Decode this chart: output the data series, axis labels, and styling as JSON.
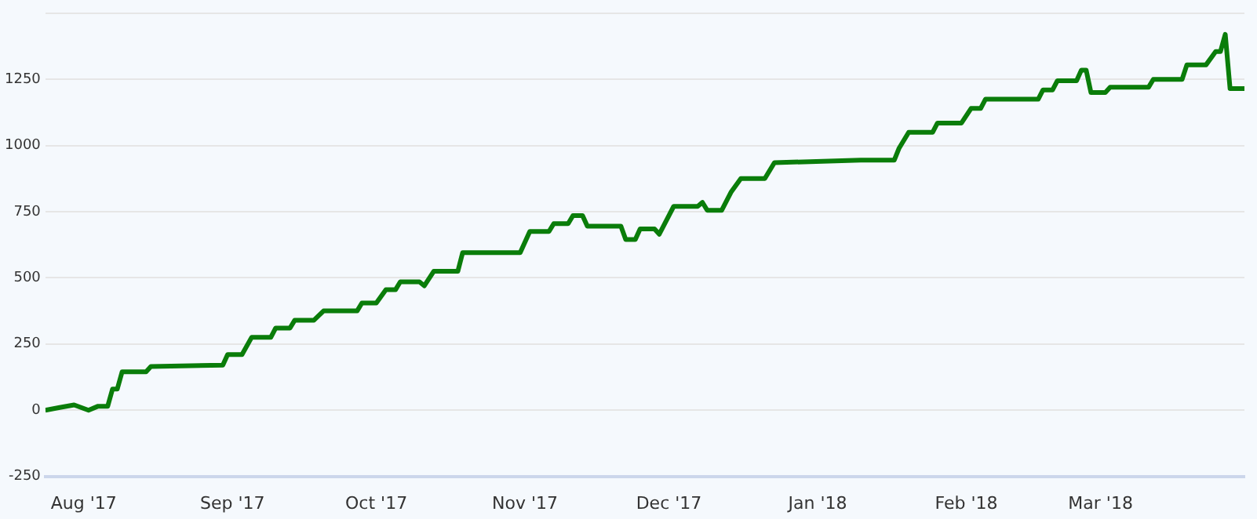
{
  "chart_data": {
    "type": "line",
    "marker": "none",
    "line_style": "solid",
    "grid": "y",
    "legend": false,
    "xlim": [
      "2017-07-24",
      "2018-03-31"
    ],
    "xticks": [
      {
        "value": "2017-08-01",
        "label": "Aug '17"
      },
      {
        "value": "2017-09-01",
        "label": "Sep '17"
      },
      {
        "value": "2017-10-01",
        "label": "Oct '17"
      },
      {
        "value": "2017-11-01",
        "label": "Nov '17"
      },
      {
        "value": "2017-12-01",
        "label": "Dec '17"
      },
      {
        "value": "2018-01-01",
        "label": "Jan '18"
      },
      {
        "value": "2018-02-01",
        "label": "Feb '18"
      },
      {
        "value": "2018-03-01",
        "label": "Mar '18"
      }
    ],
    "ylim": [
      -250,
      1500
    ],
    "yticks": [
      -250,
      0,
      250,
      500,
      750,
      1000,
      1250,
      {
        "value": 1500,
        "label": null
      }
    ],
    "x": [
      "2017-07-24",
      "2017-07-27",
      "2017-07-30",
      "2017-08-02",
      "2017-08-04",
      "2017-08-06",
      "2017-08-07",
      "2017-08-08",
      "2017-08-09",
      "2017-08-14",
      "2017-08-15",
      "2017-08-30",
      "2017-08-31",
      "2017-09-03",
      "2017-09-05",
      "2017-09-09",
      "2017-09-10",
      "2017-09-13",
      "2017-09-14",
      "2017-09-18",
      "2017-09-20",
      "2017-09-27",
      "2017-09-28",
      "2017-10-01",
      "2017-10-03",
      "2017-10-05",
      "2017-10-06",
      "2017-10-10",
      "2017-10-11",
      "2017-10-13",
      "2017-10-18",
      "2017-10-19",
      "2017-10-31",
      "2017-11-02",
      "2017-11-06",
      "2017-11-07",
      "2017-11-10",
      "2017-11-11",
      "2017-11-13",
      "2017-11-14",
      "2017-11-21",
      "2017-11-22",
      "2017-11-24",
      "2017-11-25",
      "2017-11-28",
      "2017-11-29",
      "2017-11-30",
      "2017-12-02",
      "2017-12-07",
      "2017-12-08",
      "2017-12-09",
      "2017-12-12",
      "2017-12-14",
      "2017-12-16",
      "2017-12-21",
      "2017-12-23",
      "2018-01-10",
      "2018-01-17",
      "2018-01-18",
      "2018-01-20",
      "2018-01-25",
      "2018-01-26",
      "2018-01-31",
      "2018-02-02",
      "2018-02-04",
      "2018-02-05",
      "2018-02-16",
      "2018-02-17",
      "2018-02-19",
      "2018-02-20",
      "2018-02-24",
      "2018-02-25",
      "2018-02-26",
      "2018-02-27",
      "2018-03-02",
      "2018-03-03",
      "2018-03-11",
      "2018-03-12",
      "2018-03-18",
      "2018-03-19",
      "2018-03-23",
      "2018-03-25",
      "2018-03-26",
      "2018-03-27",
      "2018-03-28",
      "2018-03-31"
    ],
    "series": [
      {
        "color": "#0a7d0a",
        "values": [
          0,
          10,
          20,
          0,
          15,
          15,
          80,
          80,
          145,
          145,
          165,
          170,
          210,
          210,
          275,
          275,
          310,
          310,
          340,
          340,
          375,
          375,
          405,
          405,
          455,
          455,
          485,
          485,
          470,
          525,
          525,
          595,
          595,
          675,
          675,
          705,
          705,
          735,
          735,
          695,
          695,
          645,
          645,
          685,
          685,
          665,
          700,
          770,
          770,
          785,
          755,
          755,
          825,
          875,
          875,
          935,
          945,
          945,
          990,
          1050,
          1050,
          1085,
          1085,
          1140,
          1140,
          1175,
          1175,
          1210,
          1210,
          1245,
          1245,
          1285,
          1285,
          1200,
          1200,
          1220,
          1220,
          1250,
          1250,
          1305,
          1305,
          1355,
          1355,
          1420,
          1215,
          1215
        ]
      }
    ]
  }
}
